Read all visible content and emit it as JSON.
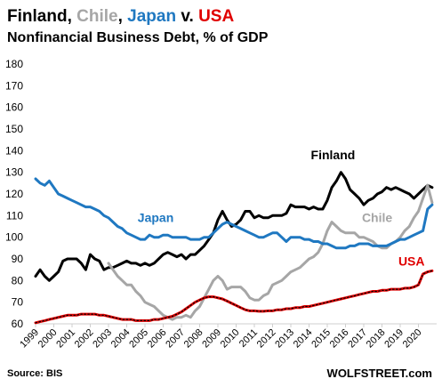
{
  "chart_data": {
    "type": "line",
    "title_parts": [
      {
        "text": "Finland",
        "color": "#000000"
      },
      {
        "text": ", ",
        "color": "#000000"
      },
      {
        "text": "Chile",
        "color": "#a6a6a6"
      },
      {
        "text": ", ",
        "color": "#000000"
      },
      {
        "text": "Japan",
        "color": "#1f78c1"
      },
      {
        "text": " v. ",
        "color": "#000000"
      },
      {
        "text": "USA",
        "color": "#e00000"
      }
    ],
    "subtitle": "Nonfinancial Business Debt, % of GDP",
    "ylim": [
      60,
      180
    ],
    "yticks": [
      60,
      70,
      80,
      90,
      100,
      110,
      120,
      130,
      140,
      150,
      160,
      170,
      180
    ],
    "xlim": [
      1999.0,
      2021.0
    ],
    "xtick_labels": [
      "1999",
      "2000",
      "2001",
      "2002",
      "2003",
      "2004",
      "2005",
      "2006",
      "2007",
      "2008",
      "2009",
      "2010",
      "2011",
      "2012",
      "2013",
      "2014",
      "2015",
      "2016",
      "2017",
      "2018",
      "2019",
      "2020"
    ],
    "grid": false,
    "series": [
      {
        "name": "Finland",
        "color": "#000000",
        "x": [
          1999.0,
          1999.25,
          1999.5,
          1999.75,
          2000.0,
          2000.25,
          2000.5,
          2000.75,
          2001.0,
          2001.25,
          2001.5,
          2001.75,
          2002.0,
          2002.25,
          2002.5,
          2002.75,
          2003.0,
          2003.25,
          2003.5,
          2003.75,
          2004.0,
          2004.25,
          2004.5,
          2004.75,
          2005.0,
          2005.25,
          2005.5,
          2005.75,
          2006.0,
          2006.25,
          2006.5,
          2006.75,
          2007.0,
          2007.25,
          2007.5,
          2007.75,
          2008.0,
          2008.25,
          2008.5,
          2008.75,
          2009.0,
          2009.25,
          2009.5,
          2009.75,
          2010.0,
          2010.25,
          2010.5,
          2010.75,
          2011.0,
          2011.25,
          2011.5,
          2011.75,
          2012.0,
          2012.25,
          2012.5,
          2012.75,
          2013.0,
          2013.25,
          2013.5,
          2013.75,
          2014.0,
          2014.25,
          2014.5,
          2014.75,
          2015.0,
          2015.25,
          2015.5,
          2015.75,
          2016.0,
          2016.25,
          2016.5,
          2016.75,
          2017.0,
          2017.25,
          2017.5,
          2017.75,
          2018.0,
          2018.25,
          2018.5,
          2018.75,
          2019.0,
          2019.25,
          2019.5,
          2019.75,
          2020.0,
          2020.25,
          2020.5,
          2020.75
        ],
        "y": [
          82,
          85,
          82,
          80,
          82,
          84,
          89,
          90,
          90,
          90,
          88,
          85,
          92,
          90,
          89,
          85,
          86,
          86,
          87,
          88,
          89,
          88,
          88,
          87,
          88,
          87,
          88,
          90,
          92,
          93,
          92,
          91,
          92,
          90,
          92,
          92,
          94,
          96,
          99,
          102,
          108,
          112,
          108,
          105,
          106,
          108,
          112,
          112,
          109,
          110,
          109,
          109,
          110,
          110,
          110,
          111,
          115,
          114,
          114,
          114,
          113,
          114,
          113,
          113,
          117,
          123,
          126,
          130,
          127,
          122,
          120,
          118,
          115,
          117,
          118,
          120,
          121,
          123,
          122,
          123,
          122,
          121,
          120,
          118,
          120,
          122,
          124,
          123
        ]
      },
      {
        "name": "Chile",
        "color": "#a6a6a6",
        "x": [
          2003.0,
          2003.25,
          2003.5,
          2003.75,
          2004.0,
          2004.25,
          2004.5,
          2004.75,
          2005.0,
          2005.25,
          2005.5,
          2005.75,
          2006.0,
          2006.25,
          2006.5,
          2006.75,
          2007.0,
          2007.25,
          2007.5,
          2007.75,
          2008.0,
          2008.25,
          2008.5,
          2008.75,
          2009.0,
          2009.25,
          2009.5,
          2009.75,
          2010.0,
          2010.25,
          2010.5,
          2010.75,
          2011.0,
          2011.25,
          2011.5,
          2011.75,
          2012.0,
          2012.25,
          2012.5,
          2012.75,
          2013.0,
          2013.25,
          2013.5,
          2013.75,
          2014.0,
          2014.25,
          2014.5,
          2014.75,
          2015.0,
          2015.25,
          2015.5,
          2015.75,
          2016.0,
          2016.25,
          2016.5,
          2016.75,
          2017.0,
          2017.25,
          2017.5,
          2017.75,
          2018.0,
          2018.25,
          2018.5,
          2018.75,
          2019.0,
          2019.25,
          2019.5,
          2019.75,
          2020.0,
          2020.25,
          2020.5,
          2020.75
        ],
        "y": [
          88,
          85,
          82,
          80,
          78,
          78,
          75,
          73,
          70,
          69,
          68,
          66,
          64,
          63,
          62,
          63,
          63,
          64,
          63,
          66,
          68,
          72,
          76,
          80,
          82,
          80,
          76,
          77,
          77,
          77,
          75,
          72,
          71,
          71,
          73,
          74,
          78,
          79,
          80,
          82,
          84,
          85,
          86,
          88,
          90,
          91,
          93,
          97,
          103,
          107,
          105,
          103,
          102,
          102,
          102,
          100,
          100,
          99,
          98,
          96,
          95,
          95,
          97,
          98,
          100,
          103,
          105,
          109,
          112,
          118,
          124,
          116
        ]
      },
      {
        "name": "Japan",
        "color": "#1f78c1",
        "x": [
          1999.0,
          1999.25,
          1999.5,
          1999.75,
          2000.0,
          2000.25,
          2000.5,
          2000.75,
          2001.0,
          2001.25,
          2001.5,
          2001.75,
          2002.0,
          2002.25,
          2002.5,
          2002.75,
          2003.0,
          2003.25,
          2003.5,
          2003.75,
          2004.0,
          2004.25,
          2004.5,
          2004.75,
          2005.0,
          2005.25,
          2005.5,
          2005.75,
          2006.0,
          2006.25,
          2006.5,
          2006.75,
          2007.0,
          2007.25,
          2007.5,
          2007.75,
          2008.0,
          2008.25,
          2008.5,
          2008.75,
          2009.0,
          2009.25,
          2009.5,
          2009.75,
          2010.0,
          2010.25,
          2010.5,
          2010.75,
          2011.0,
          2011.25,
          2011.5,
          2011.75,
          2012.0,
          2012.25,
          2012.5,
          2012.75,
          2013.0,
          2013.25,
          2013.5,
          2013.75,
          2014.0,
          2014.25,
          2014.5,
          2014.75,
          2015.0,
          2015.25,
          2015.5,
          2015.75,
          2016.0,
          2016.25,
          2016.5,
          2016.75,
          2017.0,
          2017.25,
          2017.5,
          2017.75,
          2018.0,
          2018.25,
          2018.5,
          2018.75,
          2019.0,
          2019.25,
          2019.5,
          2019.75,
          2020.0,
          2020.25,
          2020.5,
          2020.75
        ],
        "y": [
          127,
          125,
          124,
          126,
          123,
          120,
          119,
          118,
          117,
          116,
          115,
          114,
          114,
          113,
          112,
          110,
          109,
          107,
          105,
          104,
          102,
          101,
          100,
          99,
          99,
          101,
          100,
          100,
          101,
          101,
          100,
          100,
          100,
          100,
          99,
          99,
          99,
          100,
          100,
          102,
          104,
          106,
          107,
          106,
          105,
          104,
          103,
          102,
          101,
          100,
          100,
          101,
          102,
          102,
          100,
          98,
          100,
          100,
          100,
          99,
          99,
          98,
          98,
          97,
          97,
          96,
          95,
          95,
          95,
          96,
          96,
          97,
          97,
          97,
          96,
          96,
          96,
          96,
          97,
          98,
          99,
          99,
          100,
          101,
          102,
          103,
          113,
          115
        ]
      },
      {
        "name": "USA",
        "color": "#e00000",
        "x": [
          1999.0,
          1999.25,
          1999.5,
          1999.75,
          2000.0,
          2000.25,
          2000.5,
          2000.75,
          2001.0,
          2001.25,
          2001.5,
          2001.75,
          2002.0,
          2002.25,
          2002.5,
          2002.75,
          2003.0,
          2003.25,
          2003.5,
          2003.75,
          2004.0,
          2004.25,
          2004.5,
          2004.75,
          2005.0,
          2005.25,
          2005.5,
          2005.75,
          2006.0,
          2006.25,
          2006.5,
          2006.75,
          2007.0,
          2007.25,
          2007.5,
          2007.75,
          2008.0,
          2008.25,
          2008.5,
          2008.75,
          2009.0,
          2009.25,
          2009.5,
          2009.75,
          2010.0,
          2010.25,
          2010.5,
          2010.75,
          2011.0,
          2011.25,
          2011.5,
          2011.75,
          2012.0,
          2012.25,
          2012.5,
          2012.75,
          2013.0,
          2013.25,
          2013.5,
          2013.75,
          2014.0,
          2014.25,
          2014.5,
          2014.75,
          2015.0,
          2015.25,
          2015.5,
          2015.75,
          2016.0,
          2016.25,
          2016.5,
          2016.75,
          2017.0,
          2017.25,
          2017.5,
          2017.75,
          2018.0,
          2018.25,
          2018.5,
          2018.75,
          2019.0,
          2019.25,
          2019.5,
          2019.75,
          2020.0,
          2020.25,
          2020.5,
          2020.75
        ],
        "y": [
          60.5,
          61,
          61.5,
          62,
          62.5,
          63,
          63.5,
          64,
          64,
          64,
          64.5,
          64.5,
          64.5,
          64.5,
          64,
          64,
          63.5,
          63,
          62.5,
          62,
          62,
          62,
          61.5,
          61.5,
          61.5,
          61.5,
          62,
          62,
          62.5,
          63,
          63.5,
          64.5,
          65.5,
          67,
          68.5,
          70,
          71,
          72,
          72.5,
          72.5,
          72,
          71.5,
          70.5,
          69.5,
          68.5,
          67.5,
          66.5,
          66,
          66,
          65.8,
          65.8,
          66,
          66,
          66.5,
          66.5,
          67,
          67,
          67.5,
          67.5,
          68,
          68,
          68.5,
          69,
          69.5,
          70,
          70.5,
          71,
          71.5,
          72,
          72.5,
          73,
          73.5,
          74,
          74.5,
          75,
          75,
          75.5,
          75.5,
          76,
          76,
          76,
          76.5,
          76.5,
          77,
          78,
          83,
          84,
          84.5
        ]
      }
    ],
    "annotations": [
      {
        "text": "Finland",
        "series": "Finland",
        "x": 2014.1,
        "y": 136
      },
      {
        "text": "Chile",
        "series": "Chile",
        "x": 2016.9,
        "y": 107
      },
      {
        "text": "Japan",
        "series": "Japan",
        "x": 2004.6,
        "y": 107
      },
      {
        "text": "USA",
        "series": "USA",
        "x": 2018.9,
        "y": 87
      }
    ],
    "source": "Source: BIS",
    "brand": "WOLFSTREET.com"
  }
}
